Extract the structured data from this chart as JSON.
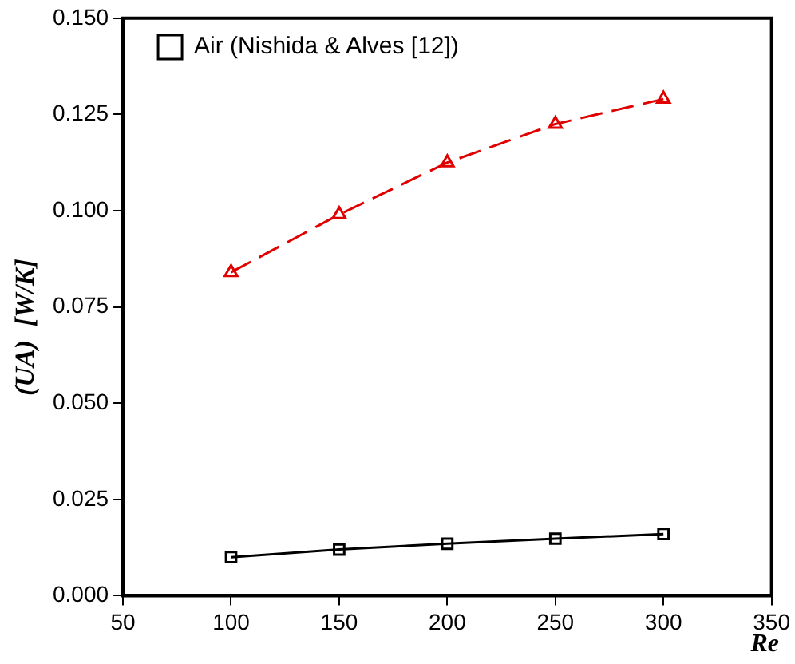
{
  "chart_data": {
    "type": "line",
    "xlabel": "Re",
    "ylabel": "(UA)  [W/K]",
    "x": [
      100,
      150,
      200,
      250,
      300
    ],
    "series": [
      {
        "name": "Air (Nishida & Alves [12])",
        "color": "#000000",
        "values": [
          0.01,
          0.012,
          0.0135,
          0.0148,
          0.016
        ],
        "marker": "square",
        "line_style": "solid"
      },
      {
        "color": "#e00000",
        "values": [
          0.084,
          0.099,
          0.1125,
          0.1225,
          0.129
        ],
        "marker": "triangle",
        "line_style": "dashed"
      }
    ],
    "xlim": [
      50,
      350
    ],
    "xticks": [
      50,
      100,
      150,
      200,
      250,
      300,
      350
    ],
    "ylim": [
      0,
      0.15
    ],
    "yticks": [
      {
        "value": 0,
        "label": "0.000"
      },
      {
        "value": 0.025,
        "label": "0.025"
      },
      {
        "value": 0.05,
        "label": "0.050"
      },
      {
        "value": 0.075,
        "label": "0.075"
      },
      {
        "value": 0.1,
        "label": "0.100"
      },
      {
        "value": 0.125,
        "label": "0.125"
      },
      {
        "value": 0.15,
        "label": "0.150"
      }
    ],
    "grid": false,
    "legend": "top left"
  }
}
